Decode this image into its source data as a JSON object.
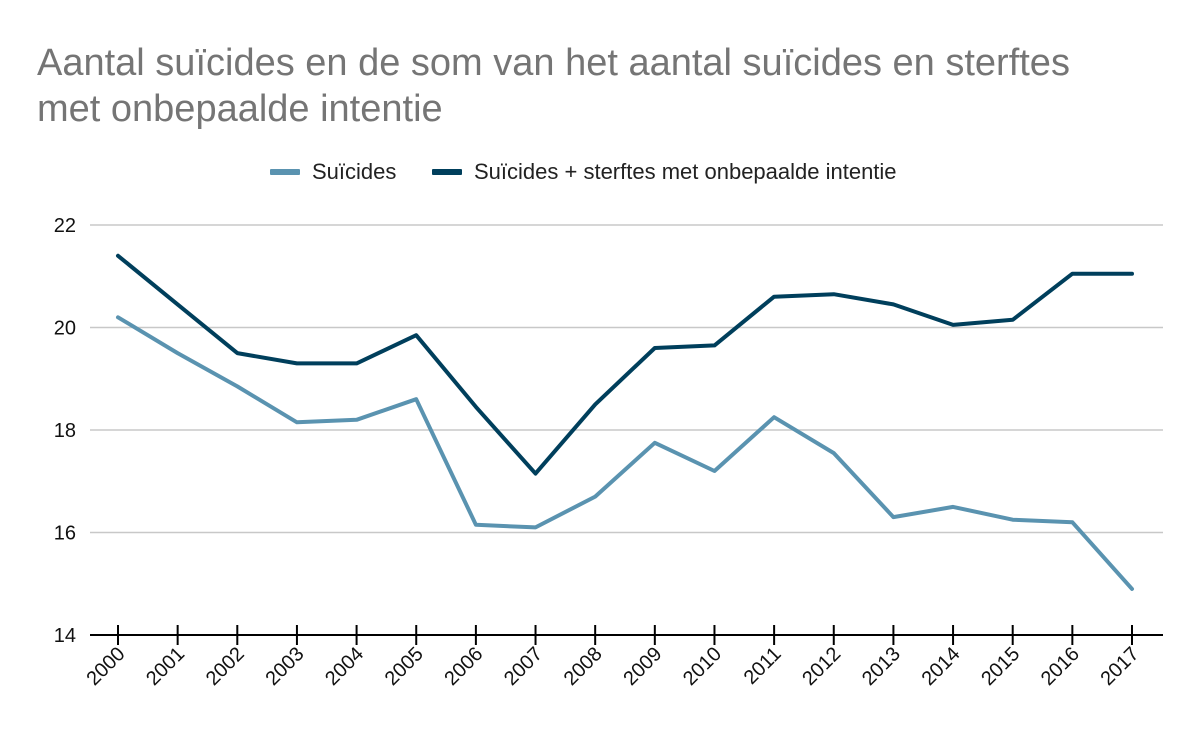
{
  "title_lines": [
    "Aantal suïcides en de som van het aantal suïcides en sterftes",
    "met onbepaalde intentie"
  ],
  "chart_data": {
    "type": "line",
    "title": "Aantal suïcides en de som van het aantal suïcides en sterftes met onbepaalde intentie",
    "xlabel": "",
    "ylabel": "",
    "x": [
      "2000",
      "2001",
      "2002",
      "2003",
      "2004",
      "2005",
      "2006",
      "2007",
      "2008",
      "2009",
      "2010",
      "2011",
      "2012",
      "2013",
      "2014",
      "2015",
      "2016",
      "2017"
    ],
    "ylim": [
      14,
      22
    ],
    "yticks": [
      "14",
      "16",
      "18",
      "20",
      "22"
    ],
    "grid": "horizontal",
    "legend_position": "top",
    "series": [
      {
        "name": "Suïcides",
        "color": "#5a93b0",
        "values": [
          20.2,
          19.5,
          18.85,
          18.15,
          18.2,
          18.6,
          16.15,
          16.1,
          16.7,
          17.75,
          17.2,
          18.25,
          17.55,
          16.3,
          16.5,
          16.25,
          16.2,
          14.9
        ]
      },
      {
        "name": "Suïcides + sterftes met onbepaalde intentie",
        "color": "#003f5c",
        "values": [
          21.4,
          20.45,
          19.5,
          19.3,
          19.3,
          19.85,
          18.45,
          17.15,
          18.5,
          19.6,
          19.65,
          20.6,
          20.65,
          20.45,
          20.05,
          20.15,
          21.05,
          21.05
        ]
      }
    ]
  }
}
